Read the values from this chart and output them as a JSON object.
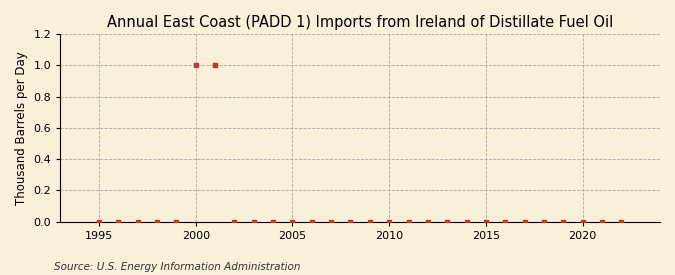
{
  "title": "Annual East Coast (PADD 1) Imports from Ireland of Distillate Fuel Oil",
  "ylabel": "Thousand Barrels per Day",
  "source": "Source: U.S. Energy Information Administration",
  "background_color": "#faefd8",
  "years": [
    1995,
    1996,
    1997,
    1998,
    1999,
    2000,
    2001,
    2002,
    2003,
    2004,
    2005,
    2006,
    2007,
    2008,
    2009,
    2010,
    2011,
    2012,
    2013,
    2014,
    2015,
    2016,
    2017,
    2018,
    2019,
    2020,
    2021,
    2022
  ],
  "values": [
    0,
    0,
    0,
    0,
    0,
    1.0,
    1.0,
    0,
    0,
    0,
    0,
    0,
    0,
    0,
    0,
    0,
    0,
    0,
    0,
    0,
    0,
    0,
    0,
    0,
    0,
    0,
    0,
    0
  ],
  "marker_color": "#c0392b",
  "marker_style": "s",
  "marker_size": 3.5,
  "grid_color": "#a0a0a0",
  "grid_style": "--",
  "xlim": [
    1993,
    2024
  ],
  "ylim": [
    0,
    1.2
  ],
  "yticks": [
    0.0,
    0.2,
    0.4,
    0.6,
    0.8,
    1.0,
    1.2
  ],
  "xticks": [
    1995,
    2000,
    2005,
    2010,
    2015,
    2020
  ],
  "title_fontsize": 10.5,
  "label_fontsize": 8.5,
  "tick_fontsize": 8,
  "source_fontsize": 7.5
}
